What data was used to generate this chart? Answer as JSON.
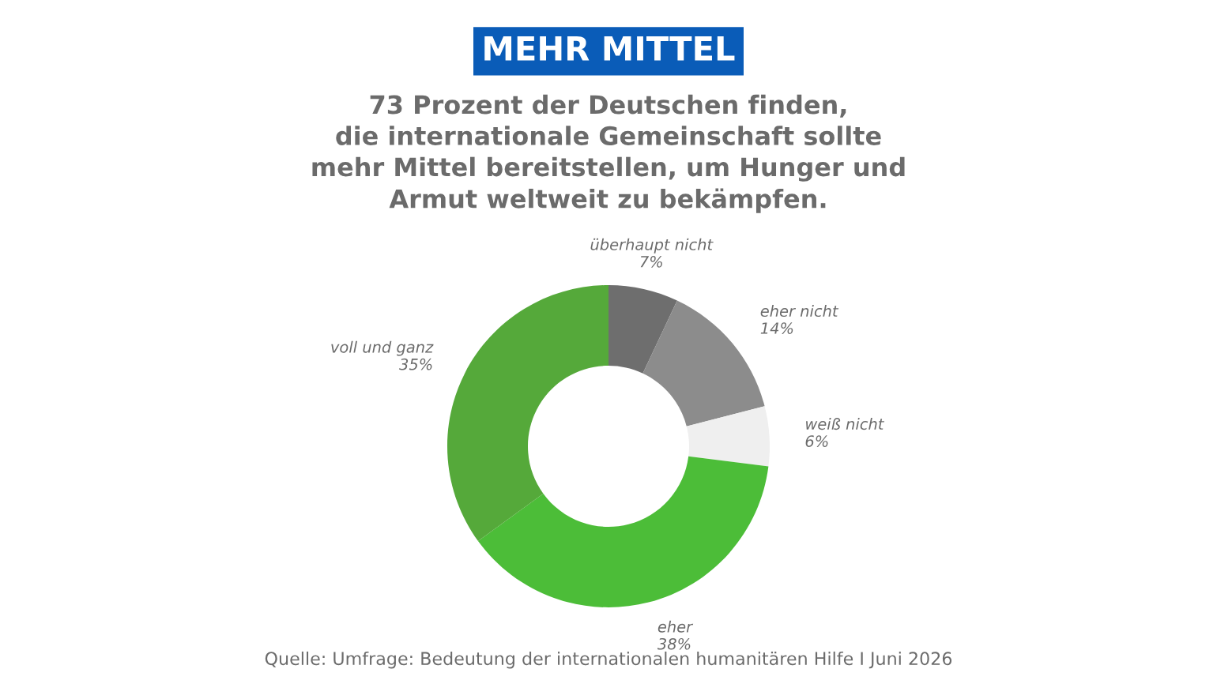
{
  "chart_data": {
    "type": "donut",
    "title": "MEHR MITTEL",
    "subtitle": "73 Prozent der Deutschen finden,\ndie internationale Gemeinschaft sollte\nmehr Mittel bereitstellen, um Hunger und\nArmut weltweit zu bekämpfen.",
    "categories": [
      "überhaupt nicht",
      "eher nicht",
      "weiß nicht",
      "eher",
      "voll und ganz"
    ],
    "values": [
      7,
      14,
      6,
      38,
      35
    ],
    "value_labels": [
      "7%",
      "14%",
      "6%",
      "38%",
      "35%"
    ],
    "colors": [
      "#6e6e6e",
      "#8c8c8c",
      "#efefef",
      "#4cbd38",
      "#55a93a"
    ],
    "annotations": [
      "Quelle: Umfrage: Bedeutung der internationalen humanitären Hilfe I Juni 2026"
    ],
    "legend": false
  }
}
